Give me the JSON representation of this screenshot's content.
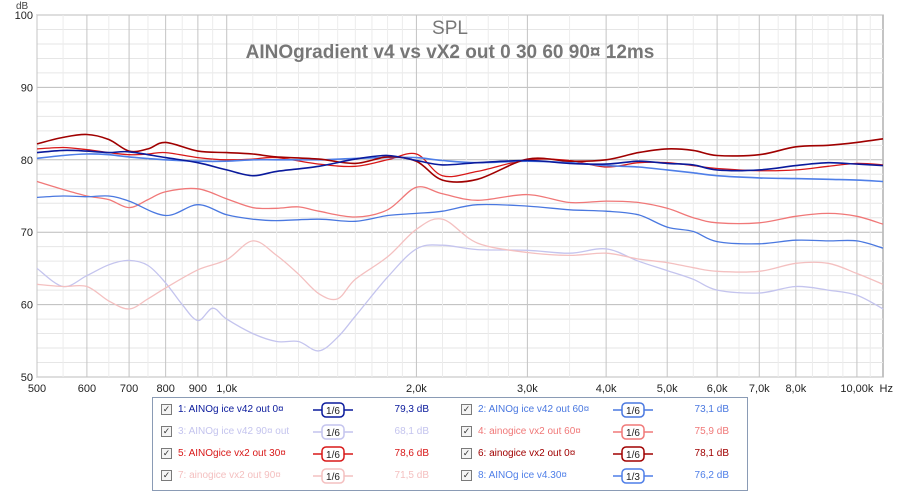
{
  "chart_data": {
    "type": "line",
    "title": "SPL",
    "subtitle": "AINOgradient v4 vs vX2 out 0 30 60 90¤ 12ms",
    "ylabel": "dB",
    "xlabel_unit": "Hz",
    "x_scale": "log",
    "xlim": [
      500,
      11000
    ],
    "ylim": [
      50,
      100
    ],
    "grid": true,
    "y_ticks": [
      "50",
      "60",
      "70",
      "80",
      "90",
      "100"
    ],
    "x_ticks": [
      {
        "v": 500,
        "l": "500"
      },
      {
        "v": 600,
        "l": "600"
      },
      {
        "v": 700,
        "l": "700"
      },
      {
        "v": 800,
        "l": "800"
      },
      {
        "v": 900,
        "l": "900"
      },
      {
        "v": 1000,
        "l": "1,0k"
      },
      {
        "v": 2000,
        "l": "2,0k"
      },
      {
        "v": 3000,
        "l": "3,0k"
      },
      {
        "v": 4000,
        "l": "4,0k"
      },
      {
        "v": 5000,
        "l": "5,0k"
      },
      {
        "v": 6000,
        "l": "6,0k"
      },
      {
        "v": 7000,
        "l": "7,0k"
      },
      {
        "v": 8000,
        "l": "8,0k"
      },
      {
        "v": 10000,
        "l": "10,00k"
      }
    ],
    "legend_position": "bottom",
    "series": [
      {
        "name": "1: AINOg ice v42 out 0¤",
        "smoothing": "1/6",
        "value": "79,3 dB",
        "color": "#0a1a9c",
        "width": 1.6,
        "x": [
          500,
          550,
          600,
          650,
          700,
          800,
          900,
          1000,
          1100,
          1200,
          1400,
          1600,
          1800,
          2000,
          2200,
          2500,
          3000,
          3500,
          4000,
          4500,
          5000,
          5500,
          6000,
          7000,
          8000,
          9000,
          10000,
          11000
        ],
        "y": [
          81,
          81.3,
          81.2,
          81,
          81.1,
          80.3,
          79.6,
          78.6,
          77.8,
          78.4,
          79.1,
          80.1,
          80.6,
          79.9,
          79.3,
          79.6,
          79.9,
          79.5,
          79.4,
          79.8,
          79.5,
          79.3,
          78.6,
          78.6,
          79.2,
          79.6,
          79.4,
          79.2
        ]
      },
      {
        "name": "2: AINOg ice v42 out 60¤",
        "smoothing": "1/6",
        "value": "73,1 dB",
        "color": "#4a78e0",
        "width": 1.3,
        "x": [
          500,
          550,
          600,
          650,
          700,
          800,
          900,
          1000,
          1100,
          1200,
          1400,
          1600,
          1800,
          2000,
          2200,
          2500,
          3000,
          3500,
          4000,
          4500,
          5000,
          5500,
          6000,
          7000,
          8000,
          9000,
          10000,
          11000
        ],
        "y": [
          74.8,
          75,
          74.9,
          75,
          74.3,
          72.3,
          73.8,
          72.4,
          71.8,
          71.6,
          71.8,
          71.5,
          72.3,
          72.6,
          72.9,
          73.8,
          73.6,
          73.1,
          72.9,
          72.4,
          70.7,
          70.1,
          68.7,
          68.4,
          68.9,
          68.8,
          68.8,
          67.8
        ]
      },
      {
        "name": "3: AINOg ice v42 90¤ out",
        "smoothing": "1/6",
        "value": "68,1 dB",
        "color": "#c4c4ee",
        "width": 1.3,
        "x": [
          500,
          550,
          600,
          650,
          700,
          750,
          800,
          850,
          900,
          950,
          1000,
          1100,
          1200,
          1300,
          1400,
          1500,
          1600,
          1800,
          2000,
          2200,
          2500,
          3000,
          3500,
          4000,
          4500,
          5000,
          5500,
          6000,
          7000,
          8000,
          9000,
          10000,
          11000
        ],
        "y": [
          65,
          62.5,
          64,
          65.5,
          66.1,
          65.4,
          63,
          60,
          57.8,
          59.5,
          58,
          56,
          54.9,
          54.9,
          53.6,
          55.5,
          58.4,
          63.8,
          67.7,
          68.2,
          67.6,
          67.5,
          67.1,
          67.7,
          66,
          64.7,
          63.5,
          62,
          61.6,
          62.5,
          62,
          61.3,
          59.4
        ]
      },
      {
        "name": "4: ainogice vx2 out 60¤",
        "smoothing": "1/6",
        "value": "75,9 dB",
        "color": "#f07878",
        "width": 1.3,
        "x": [
          500,
          550,
          600,
          650,
          700,
          750,
          800,
          900,
          1000,
          1100,
          1200,
          1300,
          1400,
          1600,
          1800,
          2000,
          2200,
          2500,
          3000,
          3500,
          4000,
          4500,
          5000,
          5500,
          6000,
          7000,
          8000,
          9000,
          10000,
          11000
        ],
        "y": [
          77,
          75.9,
          75,
          74.5,
          73.4,
          74.5,
          75.6,
          76,
          74.6,
          73.4,
          73.3,
          73.5,
          72.9,
          72.1,
          73.1,
          76.2,
          75.3,
          74.4,
          75.2,
          74.1,
          74.3,
          74.1,
          73.3,
          72,
          71.3,
          71.3,
          72.2,
          72.6,
          72.2,
          71.1
        ]
      },
      {
        "name": "5: AINOgice vx2 out 30¤",
        "smoothing": "1/6",
        "value": "78,6 dB",
        "color": "#d81818",
        "width": 1.3,
        "x": [
          500,
          550,
          600,
          650,
          700,
          750,
          800,
          900,
          1000,
          1100,
          1200,
          1400,
          1600,
          1800,
          2000,
          2200,
          2500,
          3000,
          3500,
          4000,
          4500,
          5000,
          5500,
          6000,
          7000,
          8000,
          9000,
          10000,
          11000
        ],
        "y": [
          81.5,
          81.7,
          81.4,
          81,
          80.7,
          80.8,
          81,
          80.3,
          80,
          80.1,
          80.3,
          79.4,
          79.1,
          80,
          80.8,
          77.8,
          78.4,
          80,
          79.9,
          79,
          79.6,
          79.6,
          79.2,
          78.8,
          78.5,
          78.6,
          79.1,
          79.5,
          79.3
        ]
      },
      {
        "name": "6: ainogice vx2 out 0¤",
        "smoothing": "1/6",
        "value": "78,1 dB",
        "color": "#a00000",
        "width": 1.6,
        "x": [
          500,
          550,
          600,
          650,
          700,
          750,
          800,
          900,
          1000,
          1100,
          1200,
          1400,
          1600,
          1800,
          2000,
          2200,
          2500,
          3000,
          3500,
          4000,
          4500,
          5000,
          5500,
          6000,
          7000,
          8000,
          9000,
          10000,
          11000
        ],
        "y": [
          82.2,
          83.1,
          83.5,
          82.8,
          81.2,
          81.5,
          82.4,
          81.2,
          81,
          80.8,
          80.4,
          80.1,
          79.5,
          80.4,
          79.8,
          77.2,
          77.3,
          80.1,
          79.8,
          80,
          81,
          81.5,
          81.3,
          80.6,
          80.7,
          81.8,
          82,
          82.4,
          82.9
        ]
      },
      {
        "name": "7: ainogice vx2 out 90¤",
        "smoothing": "1/6",
        "value": "71,5 dB",
        "color": "#f4c0c0",
        "width": 1.3,
        "x": [
          500,
          550,
          600,
          650,
          700,
          750,
          800,
          900,
          1000,
          1100,
          1200,
          1300,
          1400,
          1500,
          1600,
          1800,
          2000,
          2200,
          2500,
          3000,
          3500,
          4000,
          4500,
          5000,
          5500,
          6000,
          7000,
          8000,
          9000,
          10000,
          11000
        ],
        "y": [
          62.8,
          62.5,
          62.5,
          60.5,
          59.4,
          60.8,
          62.3,
          64.8,
          66.2,
          68.8,
          66.8,
          64.2,
          61.5,
          60.8,
          63.5,
          66.6,
          70.4,
          71.8,
          68.5,
          67.2,
          66.8,
          67.1,
          66.3,
          65.8,
          65.1,
          64.6,
          64.6,
          65.7,
          65.7,
          64.3,
          62.8
        ]
      },
      {
        "name": "8: AINOg ice v4.30¤",
        "smoothing": "1/3",
        "value": "76,2 dB",
        "color": "#4f7fe8",
        "width": 1.6,
        "x": [
          500,
          550,
          600,
          650,
          700,
          800,
          900,
          1000,
          1100,
          1200,
          1400,
          1600,
          1800,
          2000,
          2200,
          2500,
          3000,
          3500,
          4000,
          4500,
          5000,
          5500,
          6000,
          7000,
          8000,
          9000,
          10000,
          11000
        ],
        "y": [
          80.2,
          80.6,
          80.8,
          80.7,
          80.4,
          80,
          79.8,
          79.8,
          80,
          80,
          80,
          80.2,
          80.3,
          80.3,
          79.9,
          79.6,
          79.8,
          79.6,
          79.2,
          79,
          78.6,
          78.2,
          77.8,
          77.5,
          77.4,
          77.3,
          77.2,
          77
        ]
      }
    ]
  }
}
